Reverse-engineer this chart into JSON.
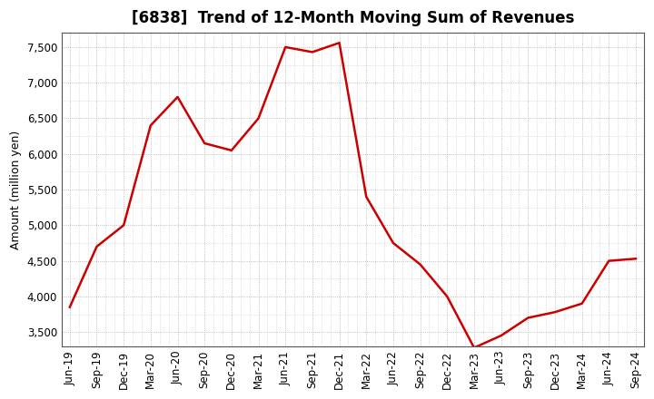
{
  "title": "[6838]  Trend of 12-Month Moving Sum of Revenues",
  "ylabel": "Amount (million yen)",
  "background_color": "#ffffff",
  "plot_bg_color": "#ffffff",
  "line_color": "#cc0000",
  "line_width": 1.8,
  "grid_color": "#aaaaaa",
  "labels": [
    "Jun-19",
    "Sep-19",
    "Dec-19",
    "Mar-20",
    "Jun-20",
    "Sep-20",
    "Dec-20",
    "Mar-21",
    "Jun-21",
    "Sep-21",
    "Dec-21",
    "Mar-22",
    "Jun-22",
    "Sep-22",
    "Dec-22",
    "Mar-23",
    "Jun-23",
    "Sep-23",
    "Dec-23",
    "Mar-24",
    "Jun-24",
    "Sep-24"
  ],
  "values": [
    3850,
    4700,
    5000,
    6400,
    6800,
    6150,
    6050,
    6500,
    7500,
    7430,
    7560,
    5400,
    4750,
    4450,
    4000,
    3280,
    3450,
    3700,
    3780,
    3900,
    4500,
    4530
  ],
  "ylim": [
    3300,
    7700
  ],
  "yticks": [
    3500,
    4000,
    4500,
    5000,
    5500,
    6000,
    6500,
    7000,
    7500
  ],
  "title_fontsize": 12,
  "ylabel_fontsize": 9,
  "tick_fontsize": 8.5
}
